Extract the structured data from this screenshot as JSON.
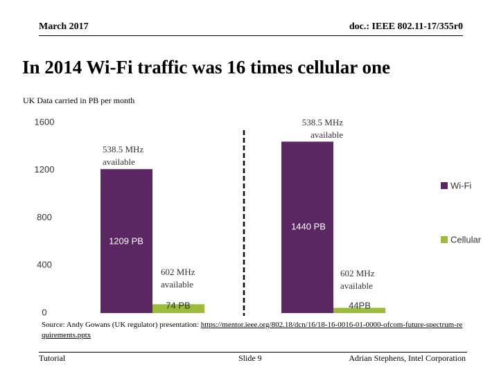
{
  "slide": {
    "header_left": "March 2017",
    "header_right": "doc.: IEEE 802.11-17/355r0",
    "title": "In 2014 Wi-Fi traffic was 16 times cellular one",
    "source_text": "Source: Andy Gowans (UK regulator) presentation: ",
    "source_link": "https://mentor.ieee.org/802.18/dcn/16/18-16-0016-01-0000-ofcom-future-spectrum-requirements.pptx",
    "footer_left": "Tutorial",
    "footer_center": "Slide 9",
    "footer_right": "Adrian Stephens, Intel Corporation"
  },
  "chart_data": {
    "type": "bar",
    "subtitle": "UK Data carried in PB per month",
    "categories": [
      null,
      null
    ],
    "series": [
      {
        "name": "Wi-Fi",
        "color": "#5b2763",
        "values": [
          1209,
          1440
        ],
        "value_labels": [
          "1209 PB",
          "1440 PB"
        ]
      },
      {
        "name": "Cellular",
        "color": "#9bbb3b",
        "values": [
          74,
          44
        ],
        "value_labels": [
          "74 PB",
          "44PB"
        ]
      }
    ],
    "annotations": [
      "538.5 MHz available",
      "538.5 MHz available",
      "602 MHz available",
      "602 MHz available"
    ],
    "ylim": [
      0,
      1600
    ],
    "yticks": [
      0,
      400,
      800,
      1200,
      1600
    ],
    "grid": false,
    "legend": "right"
  }
}
